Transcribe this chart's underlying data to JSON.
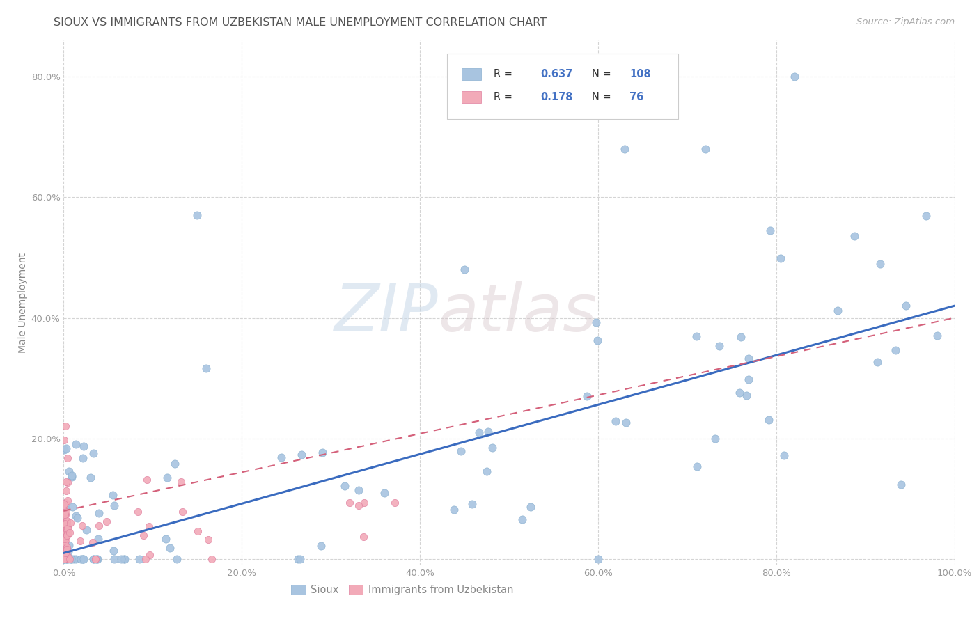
{
  "title": "SIOUX VS IMMIGRANTS FROM UZBEKISTAN MALE UNEMPLOYMENT CORRELATION CHART",
  "source": "Source: ZipAtlas.com",
  "ylabel": "Male Unemployment",
  "xlim": [
    0.0,
    1.0
  ],
  "ylim": [
    -0.01,
    0.86
  ],
  "blue_color": "#a8c4e0",
  "pink_color": "#f2aab8",
  "line_blue": "#3a6bbf",
  "line_pink": "#d4607a",
  "watermark_zip": "ZIP",
  "watermark_atlas": "atlas",
  "background_color": "#ffffff",
  "grid_color": "#d0d0d0",
  "title_color": "#555555",
  "label_color": "#888888",
  "tick_color": "#999999",
  "legend_text_color": "#4472c4",
  "legend_label_color": "#333333"
}
